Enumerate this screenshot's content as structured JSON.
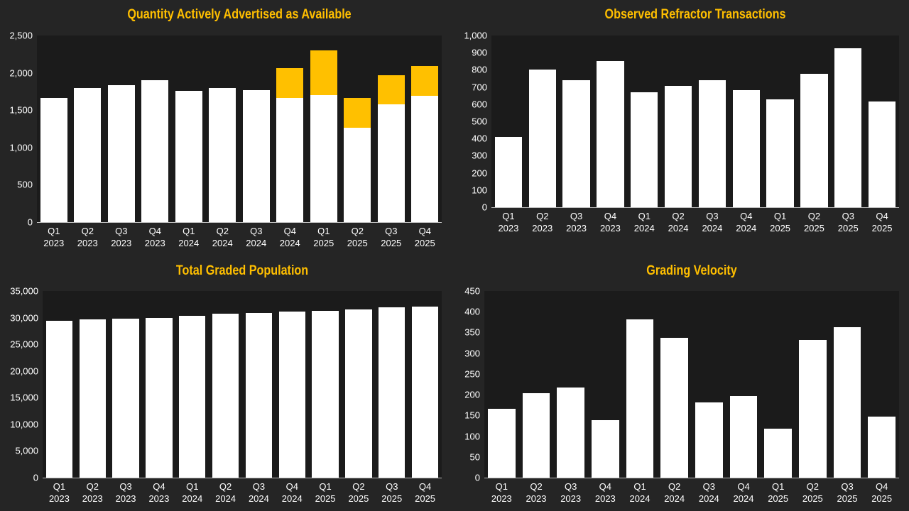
{
  "chart_data": [
    {
      "type": "bar",
      "stacked": true,
      "title": "Quantity Actively Advertised as Available",
      "categories": [
        "Q1 2023",
        "Q2 2023",
        "Q3 2023",
        "Q4 2023",
        "Q1 2024",
        "Q2 2024",
        "Q3 2024",
        "Q4 2024",
        "Q1 2025",
        "Q2 2025",
        "Q3 2025",
        "Q4 2025"
      ],
      "series": [
        {
          "color": "#ffffff",
          "values": [
            1660,
            1800,
            1830,
            1900,
            1760,
            1800,
            1770,
            1660,
            1700,
            1260,
            1580,
            1690
          ]
        },
        {
          "color": "#ffc000",
          "values": [
            0,
            0,
            0,
            0,
            0,
            0,
            0,
            400,
            600,
            400,
            390,
            400
          ]
        }
      ],
      "ylim": [
        0,
        2500
      ],
      "yticks": [
        0,
        500,
        {
          "value": 1000,
          "label": "1,000"
        },
        {
          "value": 1500,
          "label": "1,500"
        },
        {
          "value": 2000,
          "label": "2,000"
        },
        {
          "value": 2500,
          "label": "2,500"
        }
      ],
      "grid": false
    },
    {
      "type": "bar",
      "title": "Observed Refractor Transactions",
      "categories": [
        "Q1 2023",
        "Q2 2023",
        "Q3 2023",
        "Q4 2023",
        "Q1 2024",
        "Q2 2024",
        "Q3 2024",
        "Q4 2024",
        "Q1 2025",
        "Q2 2025",
        "Q3 2025",
        "Q4 2025"
      ],
      "values": [
        410,
        800,
        740,
        850,
        670,
        705,
        740,
        680,
        630,
        775,
        925,
        615
      ],
      "color": "#ffffff",
      "ylim": [
        0,
        1000
      ],
      "yticks": [
        0,
        100,
        200,
        300,
        400,
        500,
        600,
        700,
        800,
        900,
        {
          "value": 1000,
          "label": "1,000"
        }
      ],
      "grid": false
    },
    {
      "type": "bar",
      "title": "Total Graded Population",
      "categories": [
        "Q1 2023",
        "Q2 2023",
        "Q3 2023",
        "Q4 2023",
        "Q1 2024",
        "Q2 2024",
        "Q3 2024",
        "Q4 2024",
        "Q1 2025",
        "Q2 2025",
        "Q3 2025",
        "Q4 2025"
      ],
      "values": [
        29400,
        29680,
        29810,
        29940,
        30340,
        30740,
        30870,
        31140,
        31270,
        31540,
        31940,
        32070
      ],
      "color": "#ffffff",
      "ylim": [
        0,
        35000
      ],
      "yticks": [
        0,
        {
          "value": 5000,
          "label": "5,000"
        },
        {
          "value": 10000,
          "label": "10,000"
        },
        {
          "value": 15000,
          "label": "15,000"
        },
        {
          "value": 20000,
          "label": "20,000"
        },
        {
          "value": 25000,
          "label": "25,000"
        },
        {
          "value": 30000,
          "label": "30,000"
        },
        {
          "value": 35000,
          "label": "35,000"
        }
      ],
      "grid": false
    },
    {
      "type": "bar",
      "title": "Grading Velocity",
      "categories": [
        "Q1 2023",
        "Q2 2023",
        "Q3 2023",
        "Q4 2023",
        "Q1 2024",
        "Q2 2024",
        "Q3 2024",
        "Q4 2024",
        "Q1 2025",
        "Q2 2025",
        "Q3 2025",
        "Q4 2025"
      ],
      "values": [
        166,
        204,
        218,
        139,
        382,
        337,
        181,
        197,
        118,
        332,
        363,
        147
      ],
      "color": "#ffffff",
      "ylim": [
        0,
        450
      ],
      "yticks": [
        0,
        50,
        100,
        150,
        200,
        250,
        300,
        350,
        400,
        450
      ],
      "grid": false
    }
  ]
}
